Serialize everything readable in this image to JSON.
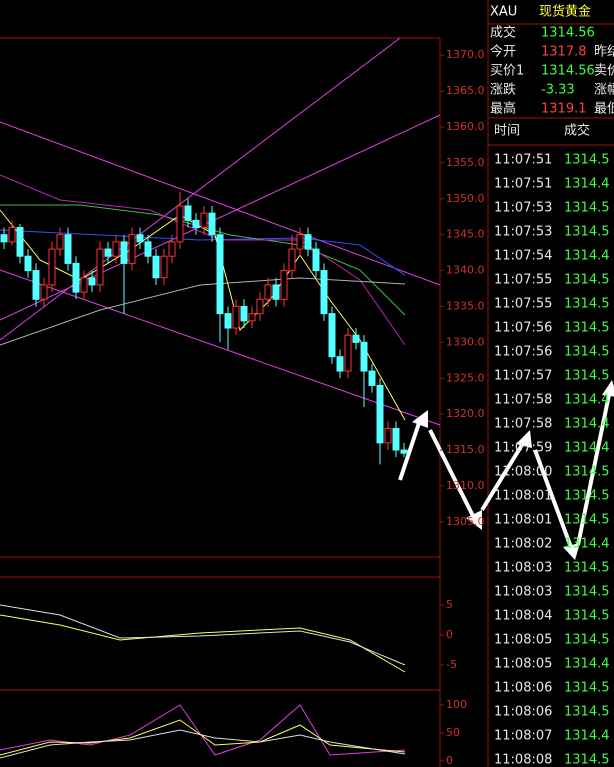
{
  "header": {
    "symbol": "XAU",
    "name": "现货黄金"
  },
  "quote": {
    "rows": [
      {
        "label": "成交",
        "value": "1314.56",
        "color": "#3dff3d"
      },
      {
        "label": "今开",
        "value": "1317.8",
        "color": "#ff4040"
      },
      {
        "label": "买价1",
        "value": "1314.56",
        "color": "#3dff3d"
      },
      {
        "label": "涨跌",
        "value": "-3.33",
        "color": "#3dff3d"
      },
      {
        "label": "最高",
        "value": "1319.1",
        "color": "#ff4040"
      }
    ],
    "right_labels": [
      "昨结",
      "卖价",
      "涨幅",
      "最低"
    ]
  },
  "trades": {
    "columns": [
      "时间",
      "成交"
    ],
    "rows": [
      [
        "11:07:51",
        "1314.5"
      ],
      [
        "11:07:51",
        "1314.4"
      ],
      [
        "11:07:53",
        "1314.5"
      ],
      [
        "11:07:53",
        "1314.5"
      ],
      [
        "11:07:54",
        "1314.4"
      ],
      [
        "11:07:55",
        "1314.5"
      ],
      [
        "11:07:55",
        "1314.5"
      ],
      [
        "11:07:56",
        "1314.5"
      ],
      [
        "11:07:56",
        "1314.5"
      ],
      [
        "11:07:57",
        "1314.5"
      ],
      [
        "11:07:58",
        "1314.4"
      ],
      [
        "11:07:58",
        "1314.4"
      ],
      [
        "11:07:59",
        "1314.4"
      ],
      [
        "11:08:00",
        "1314.5"
      ],
      [
        "11:08:01",
        "1314.5"
      ],
      [
        "11:08:01",
        "1314.5"
      ],
      [
        "11:08:02",
        "1314.4"
      ],
      [
        "11:08:03",
        "1314.5"
      ],
      [
        "11:08:03",
        "1314.5"
      ],
      [
        "11:08:04",
        "1314.5"
      ],
      [
        "11:08:05",
        "1314.5"
      ],
      [
        "11:08:05",
        "1314.4"
      ],
      [
        "11:08:06",
        "1314.5"
      ],
      [
        "11:08:06",
        "1314.5"
      ],
      [
        "11:08:07",
        "1314.4"
      ],
      [
        "11:08:08",
        "1314.5"
      ]
    ]
  },
  "chart_data": {
    "type": "candlestick",
    "up_color": "#ff3232",
    "down_color": "#54ffff",
    "ylim": [
      1300.1,
      1372.4
    ],
    "yticks": [
      {
        "value": 1370,
        "label": "1370.0"
      },
      {
        "value": 1365,
        "label": "1365.0"
      },
      {
        "value": 1360,
        "label": "1360.0"
      },
      {
        "value": 1355,
        "label": "1355.0"
      },
      {
        "value": 1350,
        "label": "1350.0"
      },
      {
        "value": 1345,
        "label": "1345.0"
      },
      {
        "value": 1340,
        "label": "1340.0"
      },
      {
        "value": 1335,
        "label": "1335.0"
      },
      {
        "value": 1330,
        "label": "1330.0"
      },
      {
        "value": 1325,
        "label": "1325.0"
      },
      {
        "value": 1320,
        "label": "1320.0"
      },
      {
        "value": 1315,
        "label": "1315.0"
      },
      {
        "value": 1310,
        "label": "1310.0"
      },
      {
        "value": 1305,
        "label": "1305.0"
      }
    ],
    "candles": [
      [
        1345,
        1346,
        1343,
        1344
      ],
      [
        1344,
        1347,
        1343.5,
        1346
      ],
      [
        1346,
        1346.5,
        1341,
        1342
      ],
      [
        1342,
        1343,
        1339,
        1340
      ],
      [
        1340,
        1341,
        1335,
        1336
      ],
      [
        1336,
        1339,
        1335,
        1338
      ],
      [
        1338,
        1344,
        1337,
        1343
      ],
      [
        1343,
        1346,
        1342,
        1345
      ],
      [
        1345,
        1346,
        1340,
        1341
      ],
      [
        1341,
        1342,
        1336,
        1337
      ],
      [
        1337,
        1340,
        1336,
        1339
      ],
      [
        1339,
        1340,
        1337,
        1338
      ],
      [
        1338,
        1344,
        1337,
        1343
      ],
      [
        1343,
        1344,
        1341,
        1342
      ],
      [
        1342,
        1345,
        1341,
        1344
      ],
      [
        1344,
        1345,
        1334,
        1341
      ],
      [
        1341,
        1346,
        1340,
        1345
      ],
      [
        1345,
        1346,
        1343,
        1344
      ],
      [
        1344,
        1345,
        1341,
        1342
      ],
      [
        1342,
        1343,
        1338,
        1339
      ],
      [
        1339,
        1343,
        1338,
        1342
      ],
      [
        1342,
        1345,
        1341,
        1344
      ],
      [
        1344,
        1351,
        1343,
        1349
      ],
      [
        1349,
        1350,
        1346,
        1347
      ],
      [
        1347,
        1348,
        1345,
        1346
      ],
      [
        1346,
        1349,
        1345,
        1348
      ],
      [
        1348,
        1349,
        1344,
        1345
      ],
      [
        1345,
        1346,
        1330,
        1334
      ],
      [
        1334,
        1335,
        1329,
        1332
      ],
      [
        1332,
        1336,
        1331,
        1335
      ],
      [
        1335,
        1336,
        1332,
        1333
      ],
      [
        1333,
        1335,
        1332,
        1334
      ],
      [
        1334,
        1337,
        1333,
        1336
      ],
      [
        1336,
        1339,
        1335,
        1338
      ],
      [
        1338,
        1339,
        1335,
        1336
      ],
      [
        1336,
        1341,
        1335,
        1340
      ],
      [
        1340,
        1345,
        1339,
        1343
      ],
      [
        1343,
        1346,
        1342,
        1345
      ],
      [
        1345,
        1346,
        1342,
        1343
      ],
      [
        1343,
        1344,
        1339,
        1340
      ],
      [
        1340,
        1341,
        1333,
        1334
      ],
      [
        1334,
        1335,
        1327,
        1328
      ],
      [
        1328,
        1329,
        1325,
        1326
      ],
      [
        1326,
        1332,
        1325,
        1331
      ],
      [
        1331,
        1332,
        1329,
        1330
      ],
      [
        1330,
        1331,
        1321,
        1326
      ],
      [
        1326,
        1327,
        1323,
        1324
      ],
      [
        1324,
        1325,
        1313,
        1316
      ],
      [
        1316,
        1319,
        1315,
        1318
      ],
      [
        1318,
        1319,
        1314,
        1315
      ],
      [
        1315,
        1316,
        1314,
        1314.56
      ]
    ],
    "macd_ylim": [
      -9.2,
      9.7
    ],
    "macd_yticks": [
      5,
      0,
      -5
    ],
    "kdj_ylim": [
      -10.7,
      126.8
    ],
    "kdj_yticks": [
      100,
      50,
      0
    ]
  }
}
